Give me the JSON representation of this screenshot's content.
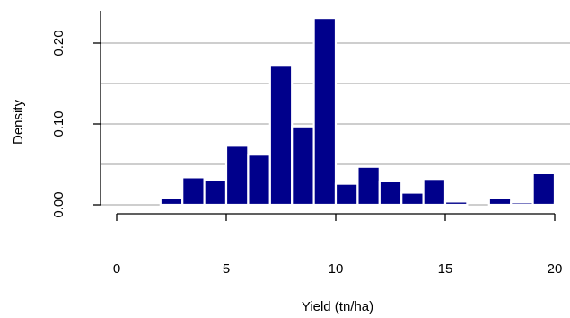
{
  "chart_data": {
    "type": "bar",
    "subtype": "histogram",
    "xlabel": "Yield (tn/ha)",
    "ylabel": "Density",
    "x_ticks": [
      0,
      5,
      10,
      15,
      20
    ],
    "x_tick_labels": [
      "0",
      "5",
      "10",
      "15",
      "20"
    ],
    "y_ticks": [
      0,
      0.1,
      0.2
    ],
    "y_tick_labels": [
      "0.00",
      "0.10",
      "0.20"
    ],
    "xlim": [
      -1,
      20.3
    ],
    "ylim": [
      0,
      0.24
    ],
    "grid": "horizontal lines at 0.00, 0.05, 0.10, 0.15, 0.20",
    "grid_values": [
      0,
      0.05,
      0.1,
      0.15,
      0.2
    ],
    "bin_width": 1,
    "bins": [
      {
        "from": 2,
        "to": 3,
        "density": 0.009
      },
      {
        "from": 3,
        "to": 4,
        "density": 0.034
      },
      {
        "from": 4,
        "to": 5,
        "density": 0.031
      },
      {
        "from": 5,
        "to": 6,
        "density": 0.073
      },
      {
        "from": 6,
        "to": 7,
        "density": 0.062
      },
      {
        "from": 7,
        "to": 8,
        "density": 0.172
      },
      {
        "from": 8,
        "to": 9,
        "density": 0.097
      },
      {
        "from": 9,
        "to": 10,
        "density": 0.231
      },
      {
        "from": 10,
        "to": 11,
        "density": 0.026
      },
      {
        "from": 11,
        "to": 12,
        "density": 0.047
      },
      {
        "from": 12,
        "to": 13,
        "density": 0.029
      },
      {
        "from": 13,
        "to": 14,
        "density": 0.015
      },
      {
        "from": 14,
        "to": 15,
        "density": 0.032
      },
      {
        "from": 15,
        "to": 16,
        "density": 0.004
      },
      {
        "from": 16,
        "to": 17,
        "density": 0.0
      },
      {
        "from": 17,
        "to": 18,
        "density": 0.008
      },
      {
        "from": 18,
        "to": 19,
        "density": 0.003
      },
      {
        "from": 19,
        "to": 20,
        "density": 0.039
      },
      {
        "from": 20,
        "to": 21,
        "density": 0.002
      }
    ],
    "colors": {
      "bar_fill": "#00008B",
      "bar_border": "#ffffff",
      "grid": "#bebebe",
      "axis": "#000000"
    }
  }
}
